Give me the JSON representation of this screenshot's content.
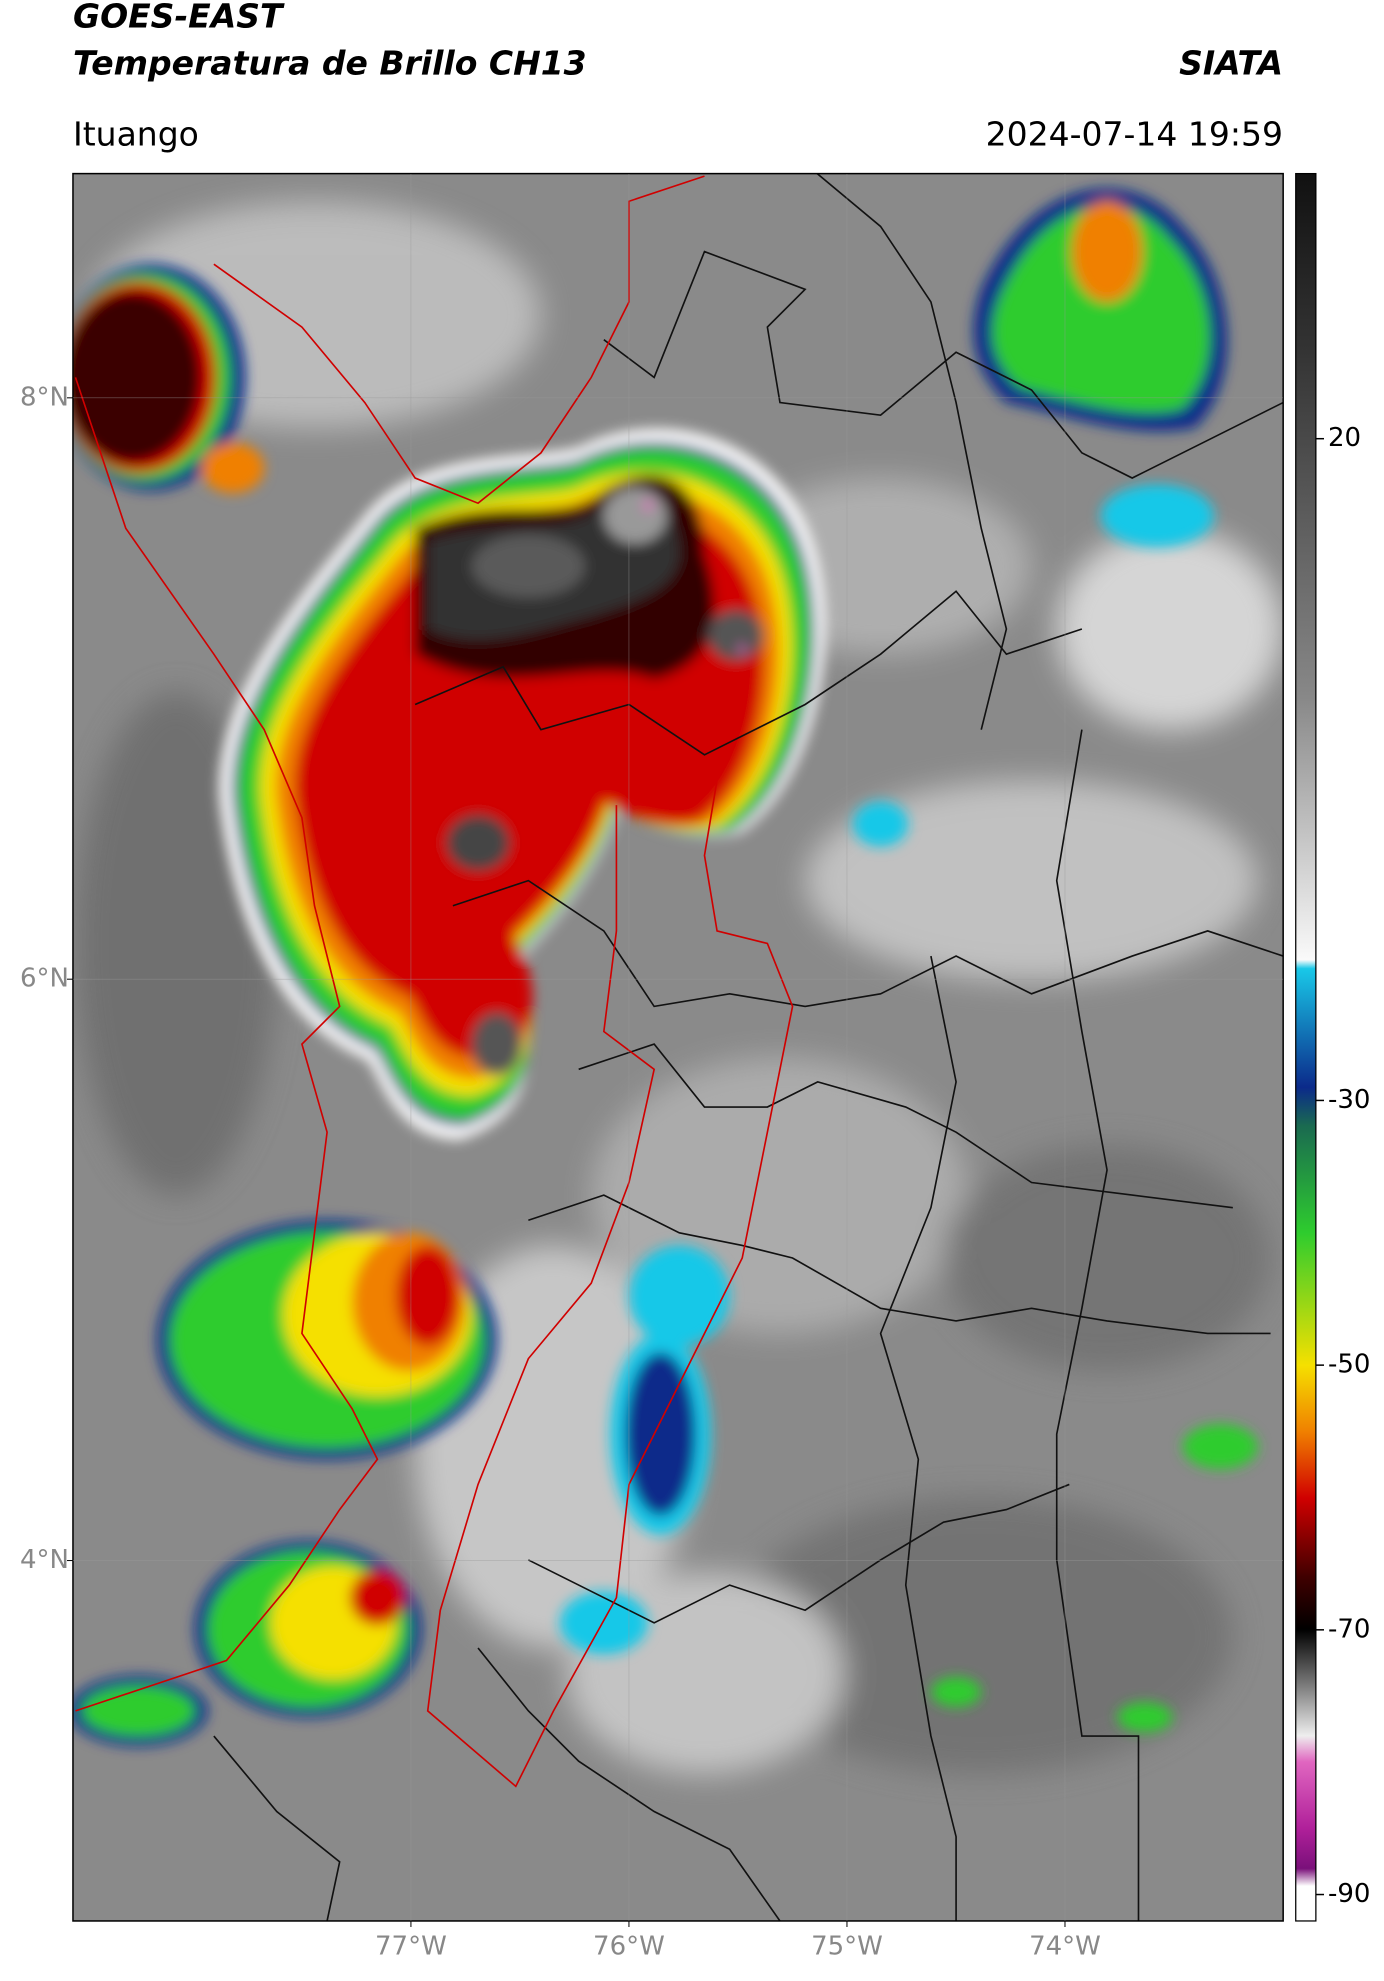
{
  "header": {
    "title": "GOES-EAST",
    "subtitle": "Temperatura de Brillo CH13",
    "source": "SIATA",
    "location": "Ituango",
    "datetime": "2024-07-14 19:59"
  },
  "map": {
    "xlim": [
      -78.55,
      -73.0
    ],
    "ylim": [
      2.76,
      8.77
    ],
    "grid": true,
    "xticks": [
      {
        "value": -77,
        "label": "77°W"
      },
      {
        "value": -76,
        "label": "76°W"
      },
      {
        "value": -75,
        "label": "75°W"
      },
      {
        "value": -74,
        "label": "74°W"
      }
    ],
    "yticks": [
      {
        "value": 8,
        "label": "8°N"
      },
      {
        "value": 6,
        "label": "6°N"
      },
      {
        "value": 4,
        "label": "4°N"
      }
    ]
  },
  "colorbar": {
    "lim": [
      -92,
      40
    ],
    "ticks": [
      20,
      -30,
      -50,
      -70,
      -90
    ]
  }
}
